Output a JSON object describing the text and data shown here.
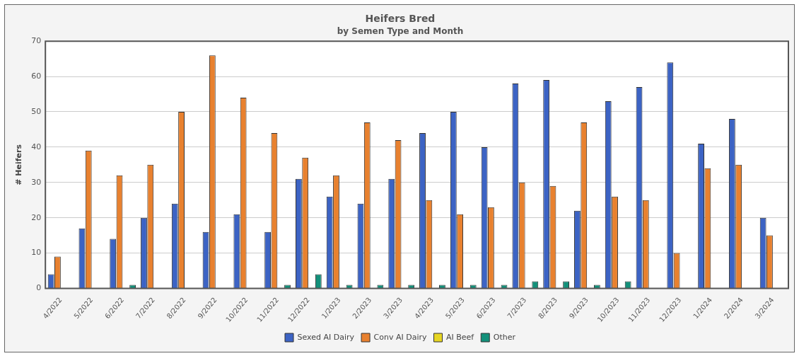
{
  "chart_data": {
    "type": "bar",
    "title": "Heifers Bred",
    "subtitle": "by Semen Type and Month",
    "ylabel": "# Heifers",
    "categories": [
      "4/2022",
      "5/2022",
      "6/2022",
      "7/2022",
      "8/2022",
      "9/2022",
      "10/2022",
      "11/2022",
      "12/2022",
      "1/2023",
      "2/2023",
      "3/2023",
      "4/2023",
      "5/2023",
      "6/2023",
      "7/2023",
      "8/2023",
      "9/2023",
      "10/2023",
      "11/2023",
      "12/2023",
      "1/2024",
      "2/2024",
      "3/2024"
    ],
    "series": [
      {
        "name": "Sexed AI Dairy",
        "color": "#3c63c4",
        "values": [
          4,
          17,
          14,
          20,
          24,
          16,
          21,
          16,
          31,
          26,
          24,
          31,
          44,
          50,
          40,
          58,
          59,
          22,
          53,
          57,
          64,
          41,
          48,
          20
        ]
      },
      {
        "name": "Conv AI Dairy",
        "color": "#e8812f",
        "values": [
          9,
          39,
          32,
          35,
          50,
          66,
          54,
          44,
          37,
          32,
          47,
          42,
          25,
          21,
          23,
          30,
          29,
          47,
          26,
          25,
          10,
          34,
          35,
          15
        ]
      },
      {
        "name": "AI Beef",
        "color": "#e6d523",
        "values": [
          0,
          0,
          0,
          0,
          0,
          0,
          0,
          0,
          0,
          0,
          0,
          0,
          0,
          0,
          0,
          0,
          0,
          0,
          0,
          0,
          0,
          0,
          0,
          0
        ]
      },
      {
        "name": "Other",
        "color": "#13907a",
        "values": [
          0,
          0,
          1,
          0,
          0,
          0,
          0,
          1,
          4,
          1,
          1,
          1,
          1,
          1,
          1,
          2,
          2,
          1,
          2,
          0,
          0,
          0,
          0,
          0
        ]
      }
    ],
    "ylim": [
      0,
      70
    ],
    "yticks": [
      0,
      10,
      20,
      30,
      40,
      50,
      60,
      70
    ],
    "grid": "y",
    "legend": "bottom"
  }
}
